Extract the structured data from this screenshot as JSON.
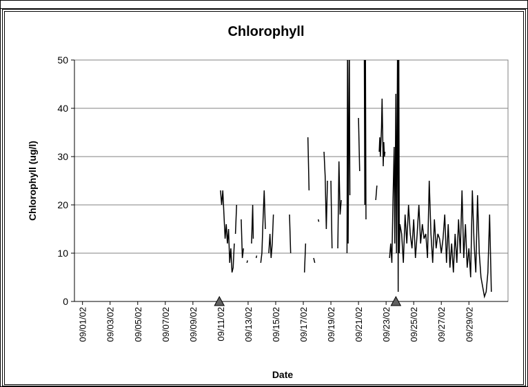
{
  "chart_data": {
    "type": "line",
    "title": "Chlorophyll",
    "x_label": "Date",
    "y_label": "Chlorophyll (ug/l)",
    "color": "#000000",
    "grid": true,
    "ylim": [
      0,
      50
    ],
    "yticks": [
      0,
      10,
      20,
      30,
      40,
      50
    ],
    "xlim": [
      "2002-08-31T10:00",
      "2002-10-01T20:00"
    ],
    "xticks": [
      {
        "value": "2002-09-01T00:00",
        "label": "09/01/02"
      },
      {
        "value": "2002-09-03T00:00",
        "label": "09/03/02"
      },
      {
        "value": "2002-09-05T00:00",
        "label": "09/05/02"
      },
      {
        "value": "2002-09-07T00:00",
        "label": "09/07/02"
      },
      {
        "value": "2002-09-09T00:00",
        "label": "09/09/02"
      },
      {
        "value": "2002-09-11T00:00",
        "label": "09/11/02"
      },
      {
        "value": "2002-09-13T00:00",
        "label": "09/13/02"
      },
      {
        "value": "2002-09-15T00:00",
        "label": "09/15/02"
      },
      {
        "value": "2002-09-17T00:00",
        "label": "09/17/02"
      },
      {
        "value": "2002-09-19T00:00",
        "label": "09/19/02"
      },
      {
        "value": "2002-09-21T00:00",
        "label": "09/21/02"
      },
      {
        "value": "2002-09-23T00:00",
        "label": "09/23/02"
      },
      {
        "value": "2002-09-25T00:00",
        "label": "09/25/02"
      },
      {
        "value": "2002-09-27T00:00",
        "label": "09/27/02"
      },
      {
        "value": "2002-09-29T00:00",
        "label": "09/29/02"
      }
    ],
    "markers": [
      "2002-09-10T22:00",
      "2002-09-23T17:00"
    ],
    "x": [
      "2002-09-11T00:00",
      "2002-09-11T02:00",
      "2002-09-11T04:00",
      "2002-09-11T06:00",
      "2002-09-11T08:00",
      "2002-09-11T10:00",
      "2002-09-11T12:00",
      "2002-09-11T14:00",
      "2002-09-11T16:00",
      "2002-09-11T18:00",
      "2002-09-11T20:00",
      "2002-09-11T22:00",
      "2002-09-12T00:00",
      null,
      "2002-09-12T02:00",
      "2002-09-12T04:00",
      null,
      "2002-09-12T12:00",
      "2002-09-12T14:00",
      "2002-09-12T16:00",
      null,
      "2002-09-12T22:00",
      "2002-09-12T23:00",
      null,
      "2002-09-13T06:00",
      "2002-09-13T08:00",
      "2002-09-13T09:00",
      null,
      "2002-09-13T14:00",
      "2002-09-13T15:00",
      null,
      "2002-09-13T22:00",
      "2002-09-14T00:00",
      "2002-09-14T02:00",
      "2002-09-14T04:00",
      "2002-09-14T06:00",
      null,
      "2002-09-14T12:00",
      "2002-09-14T14:00",
      "2002-09-14T16:00",
      "2002-09-14T18:00",
      "2002-09-14T20:00",
      null,
      "2002-09-16T00:00",
      "2002-09-16T02:00",
      null,
      "2002-09-17T02:00",
      "2002-09-17T04:00",
      null,
      "2002-09-17T08:00",
      "2002-09-17T10:00",
      null,
      "2002-09-17T18:00",
      "2002-09-17T20:00",
      null,
      "2002-09-18T02:00",
      "2002-09-18T03:00",
      null,
      "2002-09-18T12:00",
      "2002-09-18T14:00",
      "2002-09-18T16:00",
      "2002-09-18T18:00",
      null,
      "2002-09-19T00:00",
      "2002-09-19T02:00",
      null,
      "2002-09-19T12:00",
      "2002-09-19T14:00",
      "2002-09-19T16:00",
      "2002-09-19T18:00",
      null,
      "2002-09-20T04:00",
      "2002-09-20T05:00",
      "2002-09-20T06:00",
      "2002-09-20T08:00",
      "2002-09-20T09:00",
      null,
      "2002-09-21T00:00",
      "2002-09-21T02:00",
      null,
      "2002-09-21T10:00",
      "2002-09-21T11:00",
      "2002-09-21T12:00",
      "2002-09-21T13:00",
      null,
      "2002-09-22T06:00",
      "2002-09-22T08:00",
      null,
      "2002-09-22T12:00",
      "2002-09-22T13:00",
      "2002-09-22T14:00",
      "2002-09-22T16:00",
      "2002-09-22T17:00",
      "2002-09-22T18:00",
      "2002-09-22T19:00",
      "2002-09-22T20:00",
      "2002-09-22T21:00",
      "2002-09-22T22:00",
      null,
      "2002-09-23T06:00",
      "2002-09-23T08:00",
      "2002-09-23T10:00",
      "2002-09-23T12:00",
      "2002-09-23T14:00",
      "2002-09-23T15:00",
      "2002-09-23T17:00",
      "2002-09-23T18:00",
      "2002-09-23T20:00",
      "2002-09-23T21:00",
      "2002-09-23T22:00",
      "2002-09-23T23:00",
      "2002-09-24T00:00",
      "2002-09-24T03:00",
      "2002-09-24T06:00",
      "2002-09-24T09:00",
      "2002-09-24T12:00",
      "2002-09-24T15:00",
      "2002-09-24T18:00",
      "2002-09-24T21:00",
      "2002-09-25T00:00",
      "2002-09-25T03:00",
      "2002-09-25T06:00",
      "2002-09-25T09:00",
      "2002-09-25T12:00",
      "2002-09-25T15:00",
      "2002-09-25T18:00",
      "2002-09-25T21:00",
      "2002-09-26T00:00",
      "2002-09-26T03:00",
      "2002-09-26T06:00",
      "2002-09-26T09:00",
      "2002-09-26T12:00",
      "2002-09-26T15:00",
      "2002-09-26T18:00",
      "2002-09-26T21:00",
      "2002-09-27T00:00",
      "2002-09-27T03:00",
      "2002-09-27T06:00",
      "2002-09-27T09:00",
      "2002-09-27T12:00",
      "2002-09-27T15:00",
      "2002-09-27T18:00",
      "2002-09-27T21:00",
      "2002-09-28T00:00",
      "2002-09-28T03:00",
      "2002-09-28T06:00",
      "2002-09-28T09:00",
      "2002-09-28T12:00",
      "2002-09-28T15:00",
      "2002-09-28T18:00",
      "2002-09-28T21:00",
      "2002-09-29T00:00",
      "2002-09-29T03:00",
      "2002-09-29T06:00",
      "2002-09-29T09:00",
      "2002-09-29T12:00",
      "2002-09-29T15:00",
      "2002-09-29T18:00",
      "2002-09-29T21:00",
      "2002-09-30T00:00",
      "2002-09-30T03:00",
      "2002-09-30T06:00",
      "2002-09-30T09:00",
      "2002-09-30T12:00",
      "2002-09-30T15:00"
    ],
    "values": [
      23,
      20,
      23,
      18,
      13,
      16,
      12,
      15,
      8,
      11,
      6,
      7,
      12,
      null,
      14,
      20,
      null,
      17,
      9,
      11,
      null,
      8,
      8.5,
      null,
      12,
      20,
      13,
      null,
      9,
      9.5,
      null,
      8,
      10,
      17,
      23,
      15,
      null,
      10,
      14,
      9,
      12,
      18,
      null,
      18,
      10,
      null,
      6,
      12,
      null,
      34,
      23,
      null,
      9,
      8,
      null,
      17,
      16.5,
      null,
      31,
      26,
      15,
      25,
      null,
      25,
      11,
      null,
      11,
      29,
      18,
      21,
      null,
      10,
      55,
      12,
      55,
      22,
      null,
      38,
      27,
      null,
      55,
      20,
      55,
      17,
      null,
      21,
      24,
      null,
      31,
      34,
      30,
      36,
      42,
      35,
      28,
      33,
      30,
      31,
      null,
      9,
      12,
      8,
      21,
      32,
      12,
      43,
      10,
      55,
      2,
      55,
      10,
      16,
      14,
      8,
      18,
      12,
      20,
      14,
      11,
      17,
      9,
      14,
      20,
      12,
      16,
      13,
      14,
      9,
      25,
      14,
      8,
      17,
      11,
      14,
      13,
      10,
      13,
      18,
      8,
      16,
      7,
      12,
      6,
      14,
      8,
      17,
      10,
      23,
      9,
      16,
      7,
      11,
      5,
      23,
      12,
      6,
      22,
      10,
      5,
      3,
      1,
      2,
      6,
      18,
      2
    ]
  }
}
